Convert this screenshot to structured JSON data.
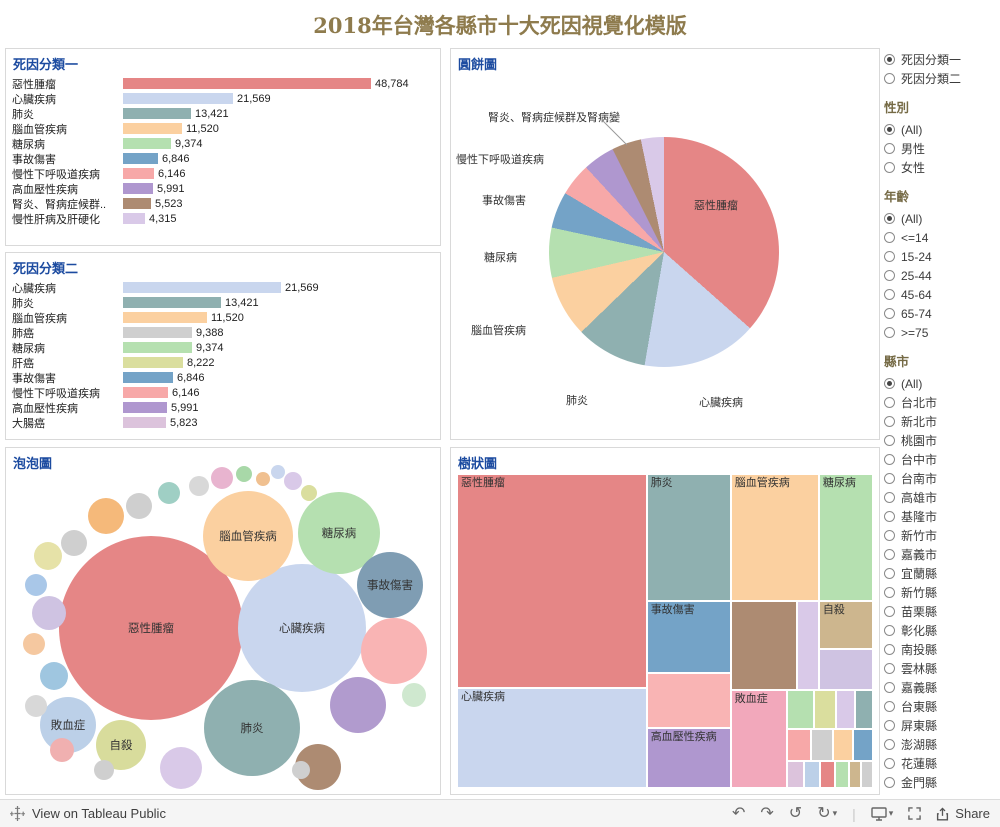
{
  "title": "2018年台灣各縣市十大死因視覺化模版",
  "chart_data": [
    {
      "id": "bar1",
      "type": "bar",
      "title": "死因分類一",
      "orientation": "horizontal",
      "categories": [
        "惡性腫瘤",
        "心臟疾病",
        "肺炎",
        "腦血管疾病",
        "糖尿病",
        "事故傷害",
        "慢性下呼吸道疾病",
        "高血壓性疾病",
        "腎炎、腎病症候群..",
        "慢性肝病及肝硬化"
      ],
      "values": [
        48784,
        21569,
        13421,
        11520,
        9374,
        6846,
        6146,
        5991,
        5523,
        4315
      ],
      "value_labels": [
        "48,784",
        "21,569",
        "13,421",
        "11,520",
        "9,374",
        "6,846",
        "6,146",
        "5,991",
        "5,523",
        "4,315"
      ],
      "colors": [
        "#e58686",
        "#c9d6ee",
        "#8fb0b0",
        "#fbd0a0",
        "#b5e0b0",
        "#74a3c7",
        "#f7a8a8",
        "#af97cf",
        "#ad8b72",
        "#d9c9e8"
      ]
    },
    {
      "id": "bar2",
      "type": "bar",
      "title": "死因分類二",
      "orientation": "horizontal",
      "categories": [
        "心臟疾病",
        "肺炎",
        "腦血管疾病",
        "肺癌",
        "糖尿病",
        "肝癌",
        "事故傷害",
        "慢性下呼吸道疾病",
        "高血壓性疾病",
        "大腸癌"
      ],
      "values": [
        21569,
        13421,
        11520,
        9388,
        9374,
        8222,
        6846,
        6146,
        5991,
        5823
      ],
      "value_labels": [
        "21,569",
        "13,421",
        "11,520",
        "9,388",
        "9,374",
        "8,222",
        "6,846",
        "6,146",
        "5,991",
        "5,823"
      ],
      "colors": [
        "#c9d6ee",
        "#8fb0b0",
        "#fbd0a0",
        "#cfcfcf",
        "#b5e0b0",
        "#dade9e",
        "#74a3c7",
        "#f7a8a8",
        "#af97cf",
        "#dcc3dc"
      ]
    },
    {
      "id": "pie",
      "type": "pie",
      "title": "圓餅圖",
      "categories": [
        "惡性腫瘤",
        "心臟疾病",
        "肺炎",
        "腦血管疾病",
        "糖尿病",
        "事故傷害",
        "慢性下呼吸道疾病",
        "高血壓性疾病",
        "腎炎、腎病症候群及腎病變",
        "慢性肝病及肝硬化"
      ],
      "values": [
        48784,
        21569,
        13421,
        11520,
        9374,
        6846,
        6146,
        5991,
        5523,
        4315
      ],
      "colors": [
        "#e58686",
        "#c9d6ee",
        "#8fb0b0",
        "#fbd0a0",
        "#b5e0b0",
        "#74a3c7",
        "#f7a8a8",
        "#af97cf",
        "#ad8b72",
        "#d9c9e8"
      ],
      "labels_visible": [
        "腎炎、腎病症候群及腎病變",
        "慢性下呼吸道疾病",
        "事故傷害",
        "糖尿病",
        "腦血管疾病",
        "肺炎",
        "心臟疾病",
        "惡性腫瘤"
      ]
    },
    {
      "id": "bubble",
      "type": "bubble",
      "title": "泡泡圖",
      "values_shown": false,
      "labeled": [
        {
          "label": "惡性腫瘤",
          "color": "#e58686"
        },
        {
          "label": "心臟疾病",
          "color": "#c9d6ee"
        },
        {
          "label": "腦血管疾病",
          "color": "#fbd0a0"
        },
        {
          "label": "糖尿病",
          "color": "#b5e0b0"
        },
        {
          "label": "事故傷害",
          "color": "#7f9db3"
        },
        {
          "label": "肺炎",
          "color": "#8fb0b0"
        },
        {
          "label": "敗血症",
          "color": "#bcd0e8"
        },
        {
          "label": "自殺",
          "color": "#d8dc9c"
        }
      ],
      "other_colors": [
        "#f9b4b4",
        "#b19bce",
        "#ad8b72",
        "#d9c9e8",
        "#f5b97a",
        "#cfc3e2",
        "#e6e2a8",
        "#a9c7e8",
        "#cfcfcf",
        "#cfcfcf",
        "#9fcfc4",
        "#d8d8d8",
        "#e8b4cf",
        "#a8d8a8",
        "#f0c090",
        "#c9d6ee",
        "#d9c9e8",
        "#dade9e",
        "#f5c8a0",
        "#9fc6e0",
        "#d8d8d8",
        "#f0b0b0",
        "#cfcfcf",
        "#cfcfcf",
        "#cfe8cf"
      ]
    },
    {
      "id": "treemap",
      "type": "treemap",
      "title": "樹狀圖",
      "cells": [
        {
          "label": "惡性腫瘤",
          "color": "#e58686"
        },
        {
          "label": "心臟疾病",
          "color": "#c9d6ee"
        },
        {
          "label": "肺炎",
          "color": "#8fb0b0"
        },
        {
          "label": "事故傷害",
          "color": "#74a3c7"
        },
        {
          "label": "",
          "color": "#f9b4b4"
        },
        {
          "label": "高血壓性疾病",
          "color": "#af97cf"
        },
        {
          "label": "腦血管疾病",
          "color": "#fbd0a0"
        },
        {
          "label": "",
          "color": "#ad8b72"
        },
        {
          "label": "",
          "color": "#d9c9e8"
        },
        {
          "label": "敗血症",
          "color": "#f2a8bb"
        },
        {
          "label": "糖尿病",
          "color": "#b5e0b0"
        },
        {
          "label": "自殺",
          "color": "#cdb68e"
        },
        {
          "label": "",
          "color": "#cfc3e2"
        }
      ],
      "mosaic_colors": [
        "#b5e0b0",
        "#dade9e",
        "#d9c9e8",
        "#8fb0b0",
        "#f7a8a8",
        "#cfcfcf",
        "#fbd0a0",
        "#74a3c7",
        "#dcc3dc",
        "#bcd0e8",
        "#e58686",
        "#b5e0b0",
        "#cdb68e",
        "#cfcfcf"
      ]
    }
  ],
  "filters": {
    "classification": {
      "selected": "死因分類一",
      "options": [
        "死因分類一",
        "死因分類二"
      ]
    },
    "gender": {
      "title": "性別",
      "selected": "(All)",
      "options": [
        "(All)",
        "男性",
        "女性"
      ]
    },
    "age": {
      "title": "年齡",
      "selected": "(All)",
      "options": [
        "(All)",
        "<=14",
        "15-24",
        "25-44",
        "45-64",
        "65-74",
        ">=75"
      ]
    },
    "county": {
      "title": "縣市",
      "selected": "(All)",
      "options": [
        "(All)",
        "台北市",
        "新北市",
        "桃園市",
        "台中市",
        "台南市",
        "高雄市",
        "基隆市",
        "新竹市",
        "嘉義市",
        "宜蘭縣",
        "新竹縣",
        "苗栗縣",
        "彰化縣",
        "南投縣",
        "雲林縣",
        "嘉義縣",
        "台東縣",
        "屏東縣",
        "澎湖縣",
        "花蓮縣",
        "金門縣"
      ]
    }
  },
  "footer": {
    "brand": "View on Tableau Public",
    "share_label": "Share",
    "toolbar": [
      {
        "name": "undo-icon",
        "glyph": "↶"
      },
      {
        "name": "redo-icon",
        "glyph": "↷"
      },
      {
        "name": "reset-icon",
        "glyph": "↺"
      },
      {
        "name": "refresh-icon",
        "glyph": "↻",
        "caret": true
      },
      {
        "name": "separator",
        "glyph": "|"
      },
      {
        "name": "device-layout-icon",
        "svg": "monitor",
        "caret": true
      },
      {
        "name": "fullscreen-icon",
        "svg": "expand"
      }
    ]
  },
  "ui_colors": {
    "panel_title": "#1c4ba0",
    "dashboard_title": "#8e7b4d",
    "filter_title": "#756a45"
  }
}
